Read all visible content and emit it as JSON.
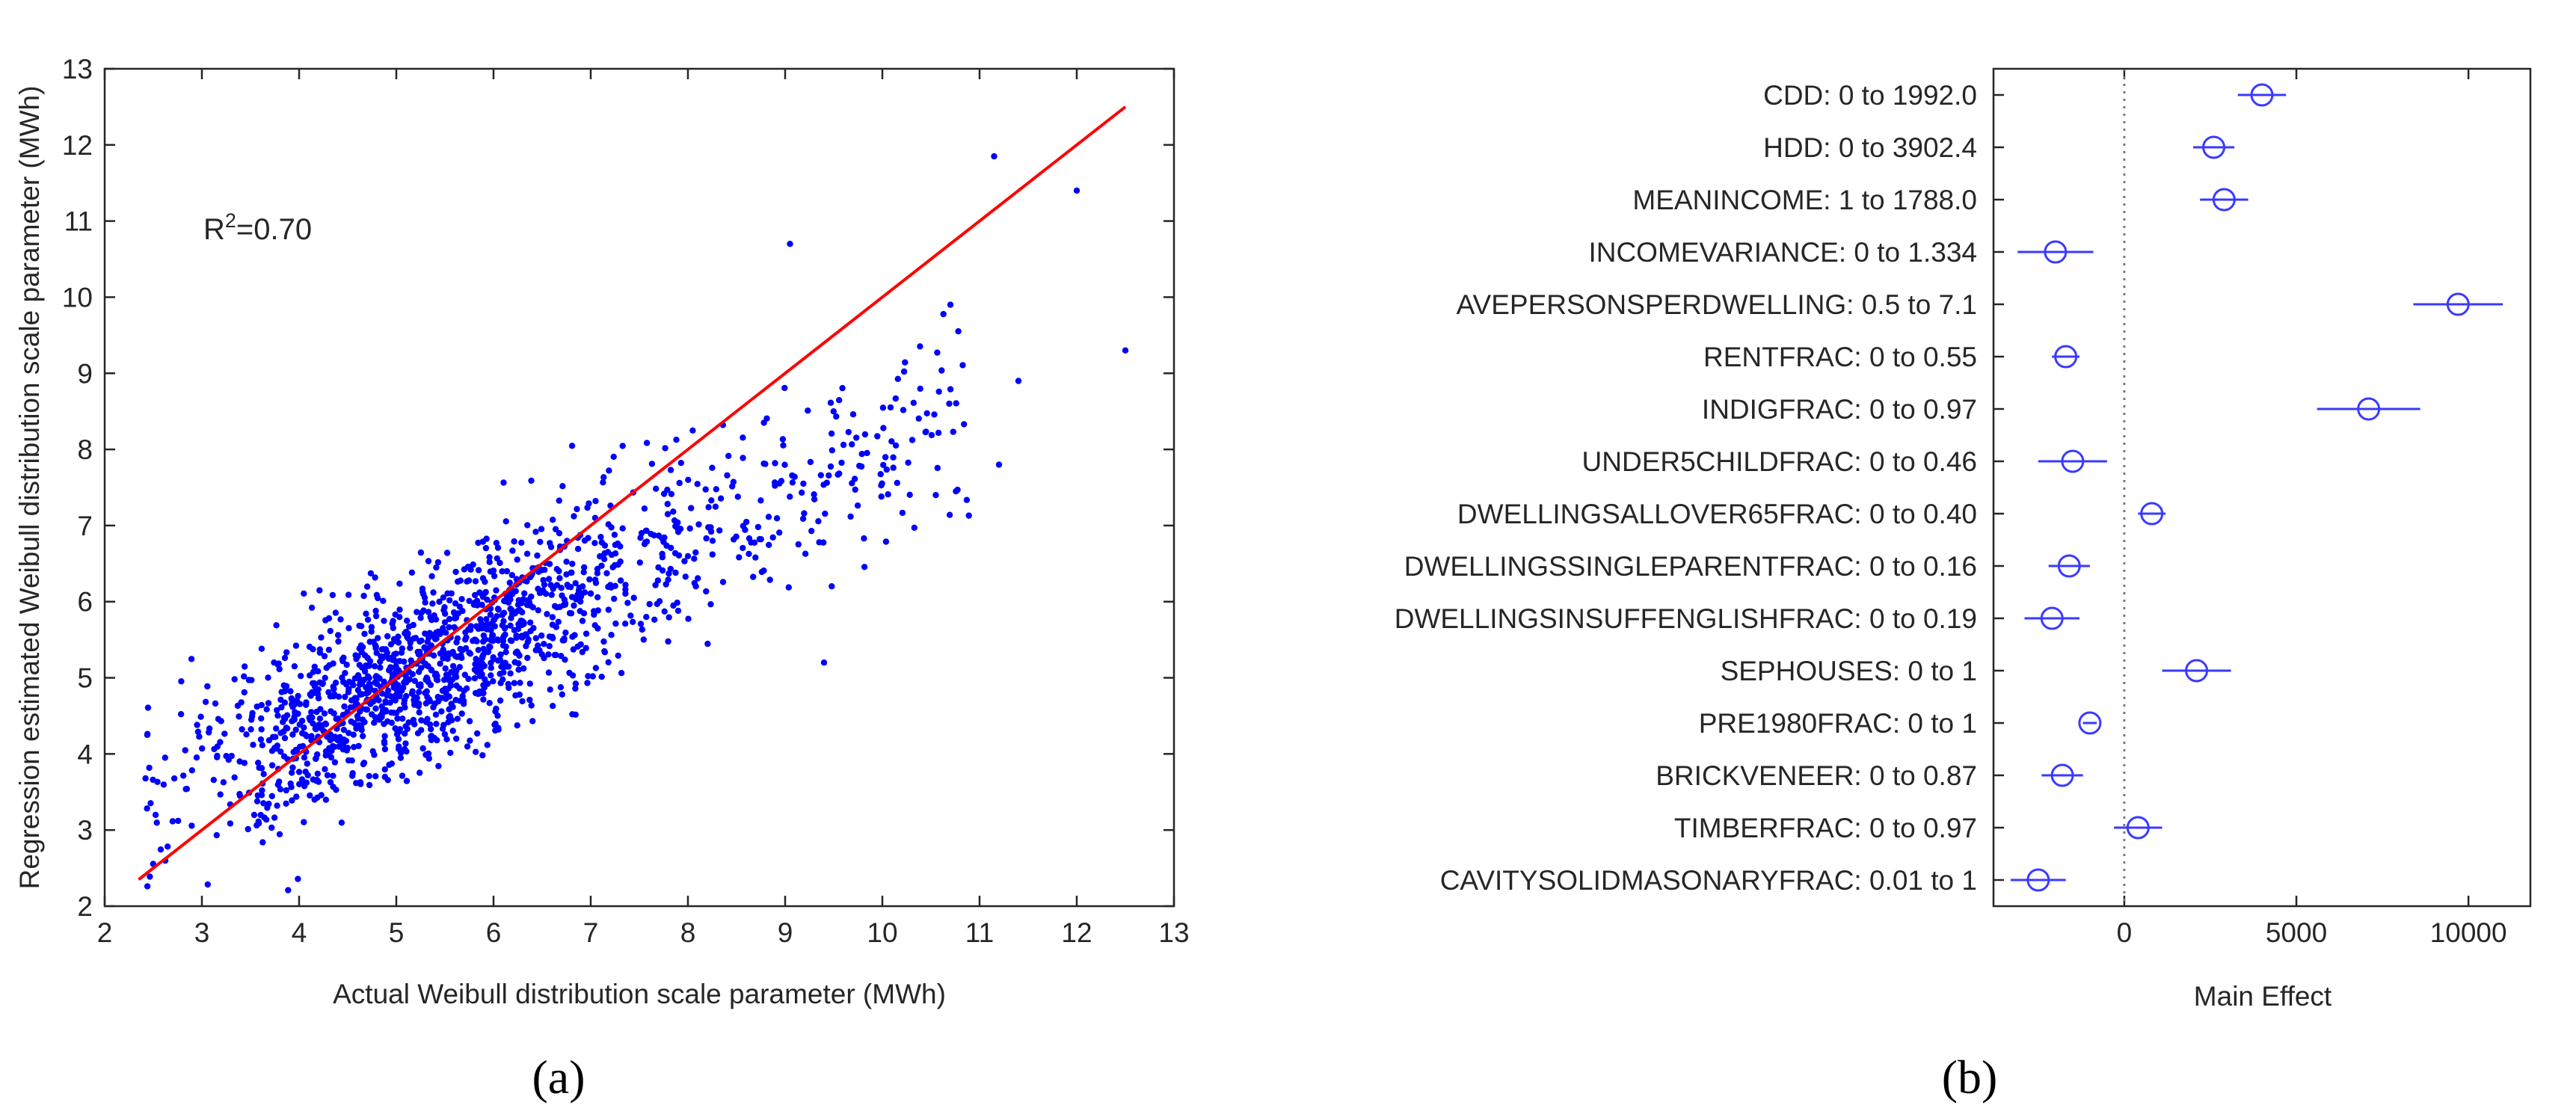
{
  "panel_labels": [
    "(a)",
    "(b)"
  ],
  "chart_data": [
    {
      "type": "scatter",
      "panel": "(a)",
      "xlabel": "Actual Weibull distribution scale parameter (MWh)",
      "ylabel": "Regression estimated Weibull distribution scale parameter (MWh)",
      "xlim": [
        2,
        13
      ],
      "ylim": [
        2,
        13
      ],
      "xticks": [
        2,
        3,
        4,
        5,
        6,
        7,
        8,
        9,
        10,
        11,
        12,
        13
      ],
      "yticks": [
        2,
        3,
        4,
        5,
        6,
        7,
        8,
        9,
        10,
        11,
        12,
        13
      ],
      "annotation": {
        "base": "R",
        "sup": "2",
        "rest": "=0.70"
      },
      "fit_line": {
        "x": [
          2.35,
          12.5
        ],
        "y": [
          2.35,
          12.5
        ],
        "color": "#ff0000"
      },
      "point_color": "#0000ff",
      "point_count": 1600,
      "point_model": "y ≈ 0.6·x + 1.9 + noise; x mainly 2.4–12.5, densest 4–6.5",
      "outliers": [
        [
          11.15,
          11.85
        ],
        [
          12.0,
          11.4
        ],
        [
          12.5,
          9.3
        ],
        [
          11.4,
          8.9
        ],
        [
          11.2,
          7.8
        ],
        [
          9.4,
          5.2
        ],
        [
          10.7,
          9.9
        ],
        [
          10.55,
          7.4
        ],
        [
          9.05,
          10.7
        ]
      ]
    },
    {
      "type": "errorbar",
      "panel": "(b)",
      "xlabel": "Main Effect",
      "xlim": [
        -3800,
        11800
      ],
      "xticks": [
        0,
        5000,
        10000
      ],
      "zero_line": true,
      "marker_color": "#3a3aff",
      "categories": [
        "CDD: 0 to 1992.0",
        "HDD: 0 to 3902.4",
        "MEANINCOME: 1 to 1788.0",
        "INCOMEVARIANCE: 0 to 1.334",
        "AVEPERSONSPERDWELLING: 0.5 to 7.1",
        "RENTFRAC: 0 to 0.55",
        "INDIGFRAC: 0 to 0.97",
        "UNDER5CHILDFRAC: 0 to 0.46",
        "DWELLINGSALLOVER65FRAC: 0 to 0.40",
        "DWELLINGSSINGLEPARENTFRAC: 0 to 0.16",
        "DWELLINGSINSUFFENGLISHFRAC: 0 to 0.19",
        "SEPHOUSES: 0 to 1",
        "PRE1980FRAC: 0 to 1",
        "BRICKVENEER: 0 to 0.87",
        "TIMBERFRAC: 0 to 0.97",
        "CAVITYSOLIDMASONARYFRAC: 0.01 to 1"
      ],
      "effects": [
        4000,
        2600,
        2900,
        -2000,
        9700,
        -1700,
        7100,
        -1500,
        800,
        -1600,
        -2100,
        2100,
        -1000,
        -1800,
        400,
        -2500
      ],
      "lower": [
        3300,
        2000,
        2200,
        -3100,
        8400,
        -2100,
        5600,
        -2500,
        400,
        -2200,
        -2900,
        1100,
        -1200,
        -2400,
        -300,
        -3300
      ],
      "upper": [
        4700,
        3200,
        3600,
        -900,
        11000,
        -1300,
        8600,
        -500,
        1200,
        -1000,
        -1300,
        3100,
        -800,
        -1200,
        1100,
        -1700
      ]
    }
  ]
}
